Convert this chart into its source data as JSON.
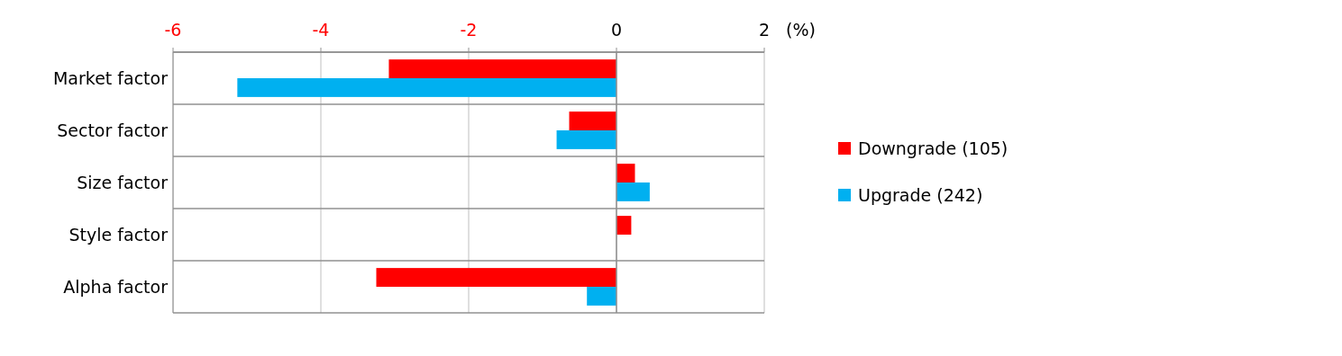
{
  "chart_data": {
    "type": "bar",
    "orientation": "horizontal",
    "xlabel": "(%)",
    "categories": [
      "Market factor",
      "Sector factor",
      "Size factor",
      "Style factor",
      "Alpha factor"
    ],
    "series": [
      {
        "name": "Downgrade (105)",
        "color": "#ff0000",
        "values": [
          -3.08,
          -0.64,
          0.25,
          0.2,
          -3.25
        ]
      },
      {
        "name": "Upgrade (242)",
        "color": "#00b0f0",
        "values": [
          -5.13,
          -0.81,
          0.45,
          0,
          -0.4
        ]
      }
    ],
    "xlim": [
      -6,
      2
    ],
    "xticks": [
      -6,
      -4,
      -2,
      0,
      2
    ],
    "grid": true,
    "legend": "right"
  }
}
